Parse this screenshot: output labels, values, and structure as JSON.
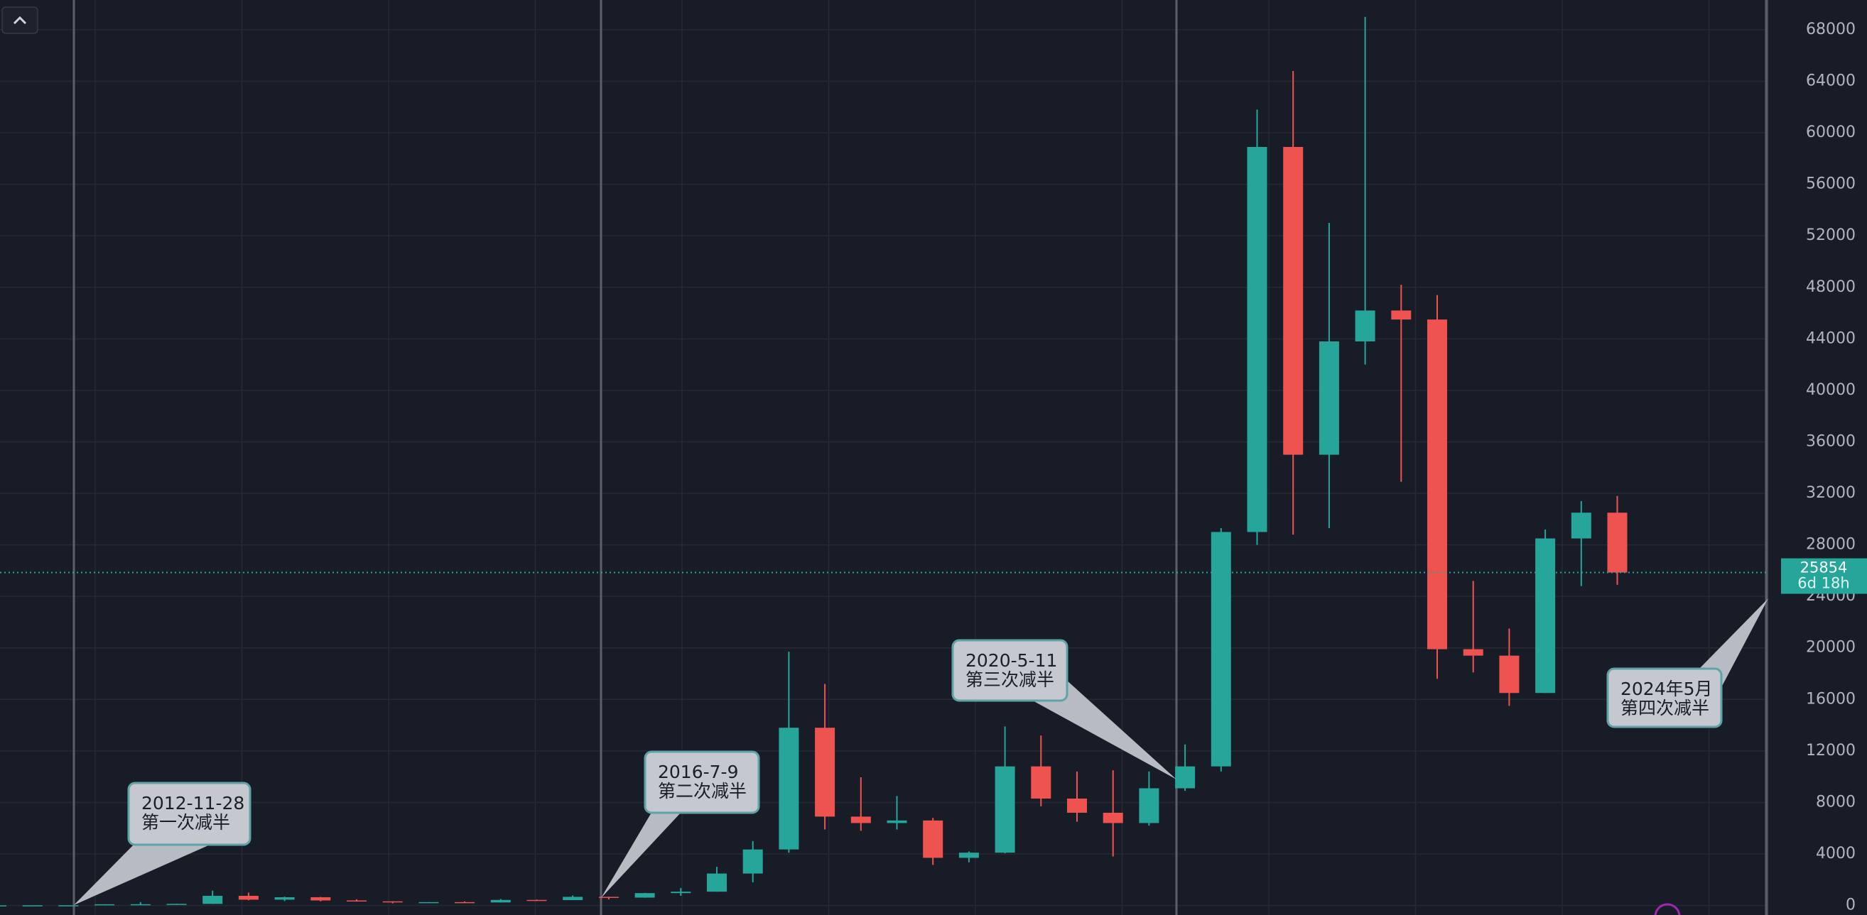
{
  "chart_data": {
    "type": "candlestick",
    "open": [
      5,
      7,
      12,
      13,
      93,
      97,
      125,
      750,
      450,
      640,
      390,
      320,
      245,
      260,
      235,
      430,
      415,
      670,
      610,
      960,
      1070,
      2480,
      4350,
      13800,
      6900,
      6400,
      6600,
      3700,
      4100,
      10800,
      8300,
      7200,
      6400,
      9100,
      10800,
      29000,
      58900,
      35000,
      43800,
      46200,
      45500,
      19900,
      19400,
      16500,
      28500,
      30500
    ],
    "high": [
      7,
      13,
      14,
      95,
      260,
      140,
      1150,
      1000,
      680,
      660,
      480,
      320,
      265,
      315,
      500,
      460,
      780,
      680,
      980,
      1350,
      3000,
      5000,
      19700,
      17200,
      9950,
      8500,
      6800,
      4200,
      13900,
      13200,
      10400,
      10500,
      10400,
      12500,
      29300,
      61800,
      64800,
      53000,
      69000,
      48200,
      47400,
      25200,
      21500,
      29200,
      31400,
      31800
    ],
    "low": [
      5,
      7,
      10,
      13,
      65,
      65,
      120,
      400,
      340,
      320,
      300,
      165,
      220,
      200,
      235,
      350,
      415,
      470,
      600,
      750,
      1070,
      1800,
      4100,
      5900,
      5800,
      5900,
      3150,
      3350,
      4050,
      7700,
      6500,
      3800,
      6200,
      8900,
      10400,
      28000,
      28800,
      29300,
      42000,
      32900,
      17600,
      18100,
      15500,
      16500,
      24800,
      24900
    ],
    "close": [
      7,
      12,
      13,
      93,
      97,
      125,
      750,
      450,
      640,
      390,
      320,
      245,
      260,
      235,
      430,
      415,
      670,
      610,
      960,
      1070,
      2480,
      4350,
      13800,
      6900,
      6400,
      6600,
      3700,
      4100,
      10800,
      8300,
      7200,
      6400,
      9100,
      10800,
      29000,
      58900,
      35000,
      43800,
      46200,
      45500,
      19900,
      19400,
      16500,
      28500,
      30500,
      25854
    ],
    "up_color": "#26a69a",
    "down_color": "#ef5350",
    "ylim": [
      -740,
      70310
    ],
    "yticks": [
      0,
      4000,
      8000,
      12000,
      16000,
      20000,
      24000,
      28000,
      32000,
      36000,
      40000,
      44000,
      48000,
      52000,
      56000,
      60000,
      64000,
      68000
    ],
    "grid": true,
    "last_price": 25854,
    "countdown": "6d 18h",
    "annotations": [
      {
        "date": "2012-11-28",
        "label": "第一次减半"
      },
      {
        "date": "2016-7-9",
        "label": "第二次减半"
      },
      {
        "date": "2020-5-11",
        "label": "第三次减半"
      },
      {
        "date": "2024年5月",
        "label": "第四次减半"
      }
    ]
  }
}
